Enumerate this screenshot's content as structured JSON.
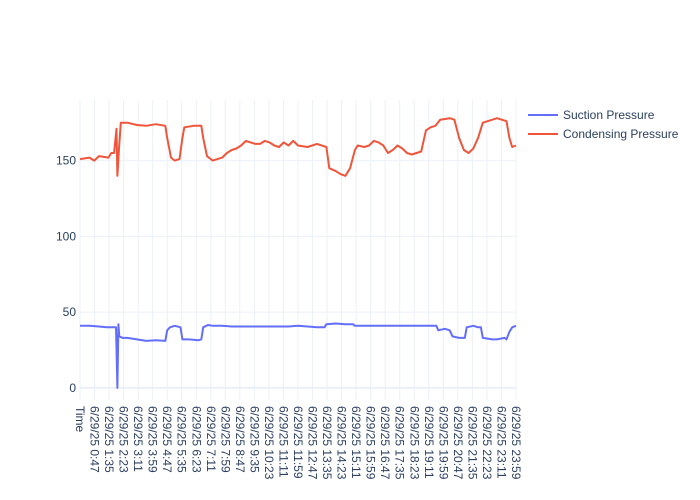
{
  "chart_data": {
    "type": "line",
    "title": "",
    "xlabel": "",
    "ylabel": "",
    "ylim": [
      -8,
      190
    ],
    "yticks": [
      0,
      50,
      100,
      150
    ],
    "grid": true,
    "legend_position": "top-right",
    "x_ticks": [
      "Time",
      "6/29/25 0:47",
      "6/29/25 1:35",
      "6/29/25 2:23",
      "6/29/25 3:11",
      "6/29/25 3:59",
      "6/29/25 4:47",
      "6/29/25 5:35",
      "6/29/25 6:23",
      "6/29/25 7:11",
      "6/29/25 7:59",
      "6/29/25 8:47",
      "6/29/25 9:35",
      "6/29/25 10:23",
      "6/29/25 11:11",
      "6/29/25 11:59",
      "6/29/25 12:47",
      "6/29/25 13:35",
      "6/29/25 14:23",
      "6/29/25 15:11",
      "6/29/25 15:59",
      "6/29/25 16:47",
      "6/29/25 17:35",
      "6/29/25 18:23",
      "6/29/25 19:11",
      "6/29/25 19:59",
      "6/29/25 20:47",
      "6/29/25 21:35",
      "6/29/25 22:23",
      "6/29/25 23:11",
      "6/29/25 23:59"
    ],
    "series": [
      {
        "name": "Suction Pressure",
        "color": "#636efa",
        "points": [
          [
            0,
            41
          ],
          [
            1,
            41
          ],
          [
            2,
            40.5
          ],
          [
            2.8,
            40
          ],
          [
            3,
            40
          ],
          [
            3.8,
            40
          ],
          [
            3.95,
            0
          ],
          [
            4.05,
            42
          ],
          [
            4.15,
            34
          ],
          [
            4.5,
            33
          ],
          [
            5,
            33
          ],
          [
            6,
            32
          ],
          [
            7,
            31
          ],
          [
            8,
            31.5
          ],
          [
            9,
            31
          ],
          [
            9.2,
            38
          ],
          [
            9.5,
            40
          ],
          [
            10,
            41
          ],
          [
            10.6,
            40
          ],
          [
            10.8,
            32
          ],
          [
            11.5,
            32
          ],
          [
            12.5,
            31.5
          ],
          [
            12.8,
            32
          ],
          [
            13.0,
            40
          ],
          [
            13.5,
            41.5
          ],
          [
            14,
            41
          ],
          [
            15,
            41
          ],
          [
            16,
            40.5
          ],
          [
            17,
            40.5
          ],
          [
            18,
            40.5
          ],
          [
            19,
            40.5
          ],
          [
            20,
            40.5
          ],
          [
            21,
            40.5
          ],
          [
            22,
            40.5
          ],
          [
            23,
            41
          ],
          [
            24,
            40.5
          ],
          [
            25,
            40
          ],
          [
            25.8,
            40
          ],
          [
            26,
            42
          ],
          [
            27,
            42.5
          ],
          [
            28,
            42
          ],
          [
            28.8,
            42
          ],
          [
            29,
            41
          ],
          [
            30,
            41
          ],
          [
            31,
            41
          ],
          [
            32,
            41
          ],
          [
            33,
            41
          ],
          [
            34,
            41
          ],
          [
            35,
            41
          ],
          [
            36,
            41
          ],
          [
            37,
            41
          ],
          [
            37.6,
            41
          ],
          [
            37.8,
            38
          ],
          [
            38.5,
            39
          ],
          [
            39,
            38
          ],
          [
            39.3,
            34
          ],
          [
            40,
            33
          ],
          [
            40.6,
            33
          ],
          [
            40.8,
            40
          ],
          [
            41.5,
            41
          ],
          [
            42,
            40
          ],
          [
            42.3,
            40
          ],
          [
            42.5,
            33
          ],
          [
            43.5,
            32
          ],
          [
            44,
            32
          ],
          [
            44.8,
            33
          ],
          [
            45,
            32
          ],
          [
            45.3,
            37
          ],
          [
            45.6,
            40
          ],
          [
            46,
            41
          ]
        ]
      },
      {
        "name": "Condensing Pressure",
        "color": "#ef553b",
        "points": [
          [
            0,
            151
          ],
          [
            1,
            152
          ],
          [
            1.5,
            150
          ],
          [
            2,
            153
          ],
          [
            3,
            152
          ],
          [
            3.3,
            155
          ],
          [
            3.6,
            155
          ],
          [
            3.85,
            171
          ],
          [
            3.95,
            140
          ],
          [
            4.1,
            157
          ],
          [
            4.3,
            175
          ],
          [
            5,
            175
          ],
          [
            6,
            173.5
          ],
          [
            7,
            173
          ],
          [
            8,
            174
          ],
          [
            9,
            173
          ],
          [
            9.2,
            165
          ],
          [
            9.6,
            152
          ],
          [
            10,
            150
          ],
          [
            10.5,
            151
          ],
          [
            10.8,
            165
          ],
          [
            11,
            172
          ],
          [
            12,
            173
          ],
          [
            12.8,
            173
          ],
          [
            13.0,
            165
          ],
          [
            13.4,
            153
          ],
          [
            14,
            150
          ],
          [
            15,
            152
          ],
          [
            15.5,
            155
          ],
          [
            16,
            157
          ],
          [
            16.5,
            158
          ],
          [
            17,
            160
          ],
          [
            17.5,
            163
          ],
          [
            18,
            162
          ],
          [
            18.5,
            161
          ],
          [
            19,
            161
          ],
          [
            19.5,
            163
          ],
          [
            20,
            162
          ],
          [
            20.5,
            160
          ],
          [
            21,
            159
          ],
          [
            21.5,
            162
          ],
          [
            22,
            160
          ],
          [
            22.5,
            163
          ],
          [
            23,
            160
          ],
          [
            24,
            159
          ],
          [
            25,
            161
          ],
          [
            26,
            159
          ],
          [
            26.3,
            145
          ],
          [
            27,
            143
          ],
          [
            27.5,
            141
          ],
          [
            28,
            140
          ],
          [
            28.5,
            145
          ],
          [
            29,
            157
          ],
          [
            29.3,
            160
          ],
          [
            30,
            159
          ],
          [
            30.5,
            160
          ],
          [
            31,
            163
          ],
          [
            31.5,
            162
          ],
          [
            32,
            160
          ],
          [
            32.5,
            155
          ],
          [
            33,
            157
          ],
          [
            33.5,
            160
          ],
          [
            34,
            158
          ],
          [
            34.5,
            155
          ],
          [
            35,
            154
          ],
          [
            35.5,
            155
          ],
          [
            36,
            156
          ],
          [
            36.5,
            170
          ],
          [
            37,
            172
          ],
          [
            37.5,
            173
          ],
          [
            38,
            177
          ],
          [
            39,
            178
          ],
          [
            39.5,
            177
          ],
          [
            40,
            165
          ],
          [
            40.5,
            157
          ],
          [
            41,
            155
          ],
          [
            41.5,
            158
          ],
          [
            42,
            165
          ],
          [
            42.5,
            175
          ],
          [
            43,
            176
          ],
          [
            44,
            178
          ],
          [
            45,
            176
          ],
          [
            45.3,
            165
          ],
          [
            45.6,
            159
          ],
          [
            46,
            160
          ]
        ]
      }
    ]
  }
}
